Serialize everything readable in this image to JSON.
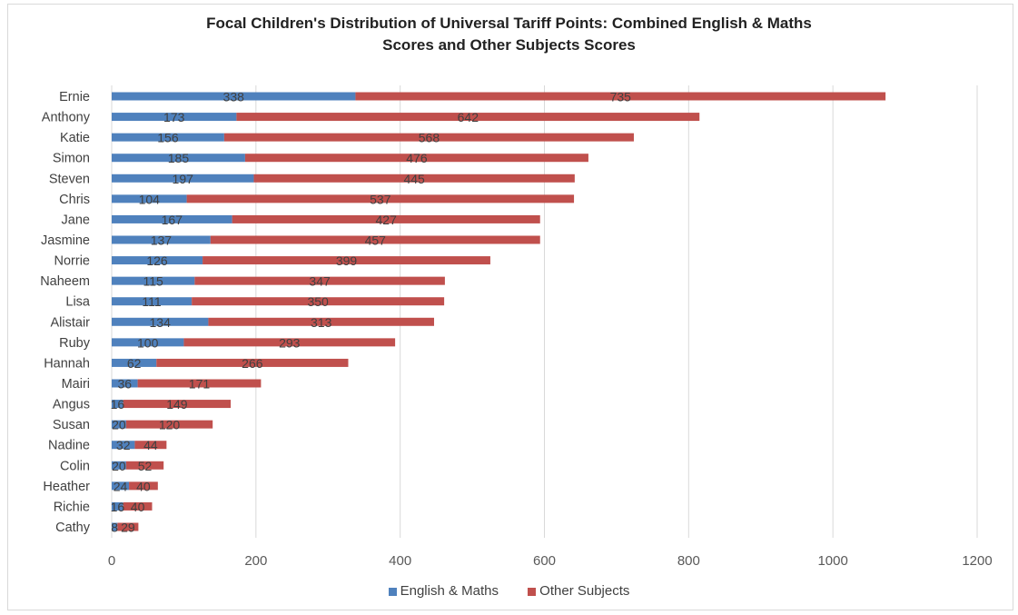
{
  "chart_data": {
    "type": "bar",
    "orientation": "horizontal",
    "stacked": true,
    "title": [
      "Focal Children's Distribution of Universal Tariff Points: Combined English & Maths",
      "Scores and Other Subjects Scores"
    ],
    "categories": [
      "Ernie",
      "Anthony",
      "Katie",
      "Simon",
      "Steven",
      "Chris",
      "Jane",
      "Jasmine",
      "Norrie",
      "Naheem",
      "Lisa",
      "Alistair",
      "Ruby",
      "Hannah",
      "Mairi",
      "Angus",
      "Susan",
      "Nadine",
      "Colin",
      "Heather",
      "Richie",
      "Cathy"
    ],
    "series": [
      {
        "name": "English & Maths",
        "color": "#4f81bd",
        "values": [
          338,
          173,
          156,
          185,
          197,
          104,
          167,
          137,
          126,
          115,
          111,
          134,
          100,
          62,
          36,
          16,
          20,
          32,
          20,
          24,
          16,
          8
        ]
      },
      {
        "name": "Other Subjects",
        "color": "#c0504d",
        "values": [
          735,
          642,
          568,
          476,
          445,
          537,
          427,
          457,
          399,
          347,
          350,
          313,
          293,
          266,
          171,
          149,
          120,
          44,
          52,
          40,
          40,
          29
        ]
      }
    ],
    "xlim": [
      0,
      1200
    ],
    "xticks": [
      0,
      200,
      400,
      600,
      800,
      1000,
      1200
    ],
    "grid": true,
    "legend_position": "bottom",
    "data_labels": true
  }
}
